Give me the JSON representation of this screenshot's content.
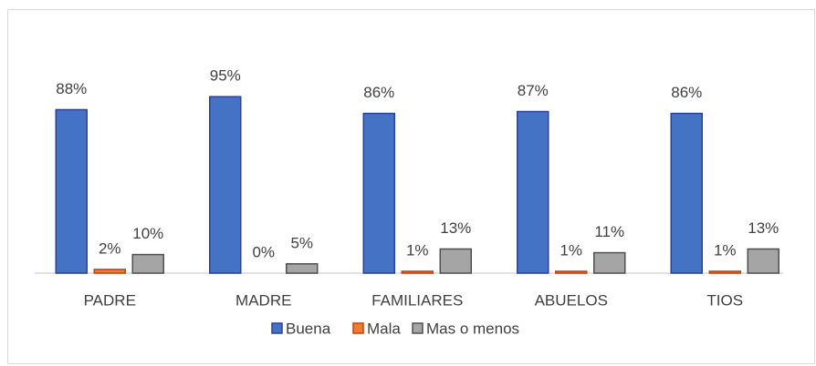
{
  "chart_data": {
    "type": "bar",
    "categories": [
      "PADRE",
      "MADRE",
      "FAMILIARES",
      "ABUELOS",
      "TIOS"
    ],
    "series": [
      {
        "name": "Buena",
        "color": "#4472c4",
        "values": [
          88,
          95,
          86,
          87,
          86
        ],
        "value_labels": [
          "88%",
          "95%",
          "86%",
          "87%",
          "86%"
        ]
      },
      {
        "name": "Mala",
        "color": "#ed7d31",
        "values": [
          2,
          0,
          1,
          1,
          1
        ],
        "value_labels": [
          "2%",
          "0%",
          "1%",
          "1%",
          "1%"
        ]
      },
      {
        "name": "Mas o menos",
        "color": "#a5a5a5",
        "values": [
          10,
          5,
          13,
          11,
          13
        ],
        "value_labels": [
          "10%",
          "5%",
          "13%",
          "11%",
          "13%"
        ]
      }
    ],
    "ylim": [
      0,
      100
    ],
    "legend": "bottom"
  }
}
